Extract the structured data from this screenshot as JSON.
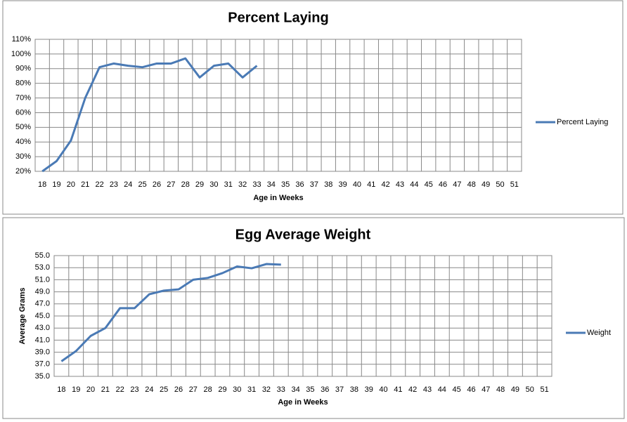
{
  "chart_data": [
    {
      "type": "line",
      "title": "Percent Laying",
      "x_label": "Age in Weeks",
      "categories": [
        18,
        19,
        20,
        21,
        22,
        23,
        24,
        25,
        26,
        27,
        28,
        29,
        30,
        31,
        32,
        33,
        34,
        35,
        36,
        37,
        38,
        39,
        40,
        41,
        42,
        43,
        44,
        45,
        46,
        47,
        48,
        49,
        50,
        51
      ],
      "series": [
        {
          "name": "Percent Laying",
          "color": "#4a7ab5",
          "values": [
            20,
            27,
            41,
            70,
            91,
            93.5,
            92,
            91,
            93.5,
            93.5,
            97,
            84,
            92,
            93.5,
            84,
            92,
            null,
            null,
            null,
            null,
            null,
            null,
            null,
            null,
            null,
            null,
            null,
            null,
            null,
            null,
            null,
            null,
            null,
            null
          ]
        }
      ],
      "ylim": [
        20,
        110
      ],
      "yticks": [
        {
          "value": 20,
          "label": "20%"
        },
        {
          "value": 30,
          "label": "30%"
        },
        {
          "value": 40,
          "label": "40%"
        },
        {
          "value": 50,
          "label": "50%"
        },
        {
          "value": 60,
          "label": "60%"
        },
        {
          "value": 70,
          "label": "70%"
        },
        {
          "value": 80,
          "label": "80%"
        },
        {
          "value": 90,
          "label": "90%"
        },
        {
          "value": 100,
          "label": "100%"
        },
        {
          "value": 110,
          "label": "110%"
        }
      ],
      "grid": true,
      "legend": "right"
    },
    {
      "type": "line",
      "title": "Egg Average Weight",
      "x_label": "Age in Weeks",
      "y_label": "Average Grams",
      "categories": [
        18,
        19,
        20,
        21,
        22,
        23,
        24,
        25,
        26,
        27,
        28,
        29,
        30,
        31,
        32,
        33,
        34,
        35,
        36,
        37,
        38,
        39,
        40,
        41,
        42,
        43,
        44,
        45,
        46,
        47,
        48,
        49,
        50,
        51
      ],
      "series": [
        {
          "name": "Weight",
          "color": "#4a7ab5",
          "values": [
            37.5,
            39.2,
            41.7,
            43.0,
            46.3,
            46.3,
            48.6,
            49.2,
            49.4,
            51.0,
            51.3,
            52.1,
            53.2,
            52.9,
            53.6,
            53.5,
            null,
            null,
            null,
            null,
            null,
            null,
            null,
            null,
            null,
            null,
            null,
            null,
            null,
            null,
            null,
            null,
            null,
            null
          ]
        }
      ],
      "ylim": [
        35,
        55
      ],
      "yticks": [
        {
          "value": 35,
          "label": "35.0"
        },
        {
          "value": 37,
          "label": "37.0"
        },
        {
          "value": 39,
          "label": "39.0"
        },
        {
          "value": 41,
          "label": "41.0"
        },
        {
          "value": 43,
          "label": "43.0"
        },
        {
          "value": 45,
          "label": "45.0"
        },
        {
          "value": 47,
          "label": "47.0"
        },
        {
          "value": 49,
          "label": "49.0"
        },
        {
          "value": 51,
          "label": "51.0"
        },
        {
          "value": 53,
          "label": "53.0"
        },
        {
          "value": 55,
          "label": "55.0"
        }
      ],
      "grid": true,
      "legend": "right"
    }
  ]
}
